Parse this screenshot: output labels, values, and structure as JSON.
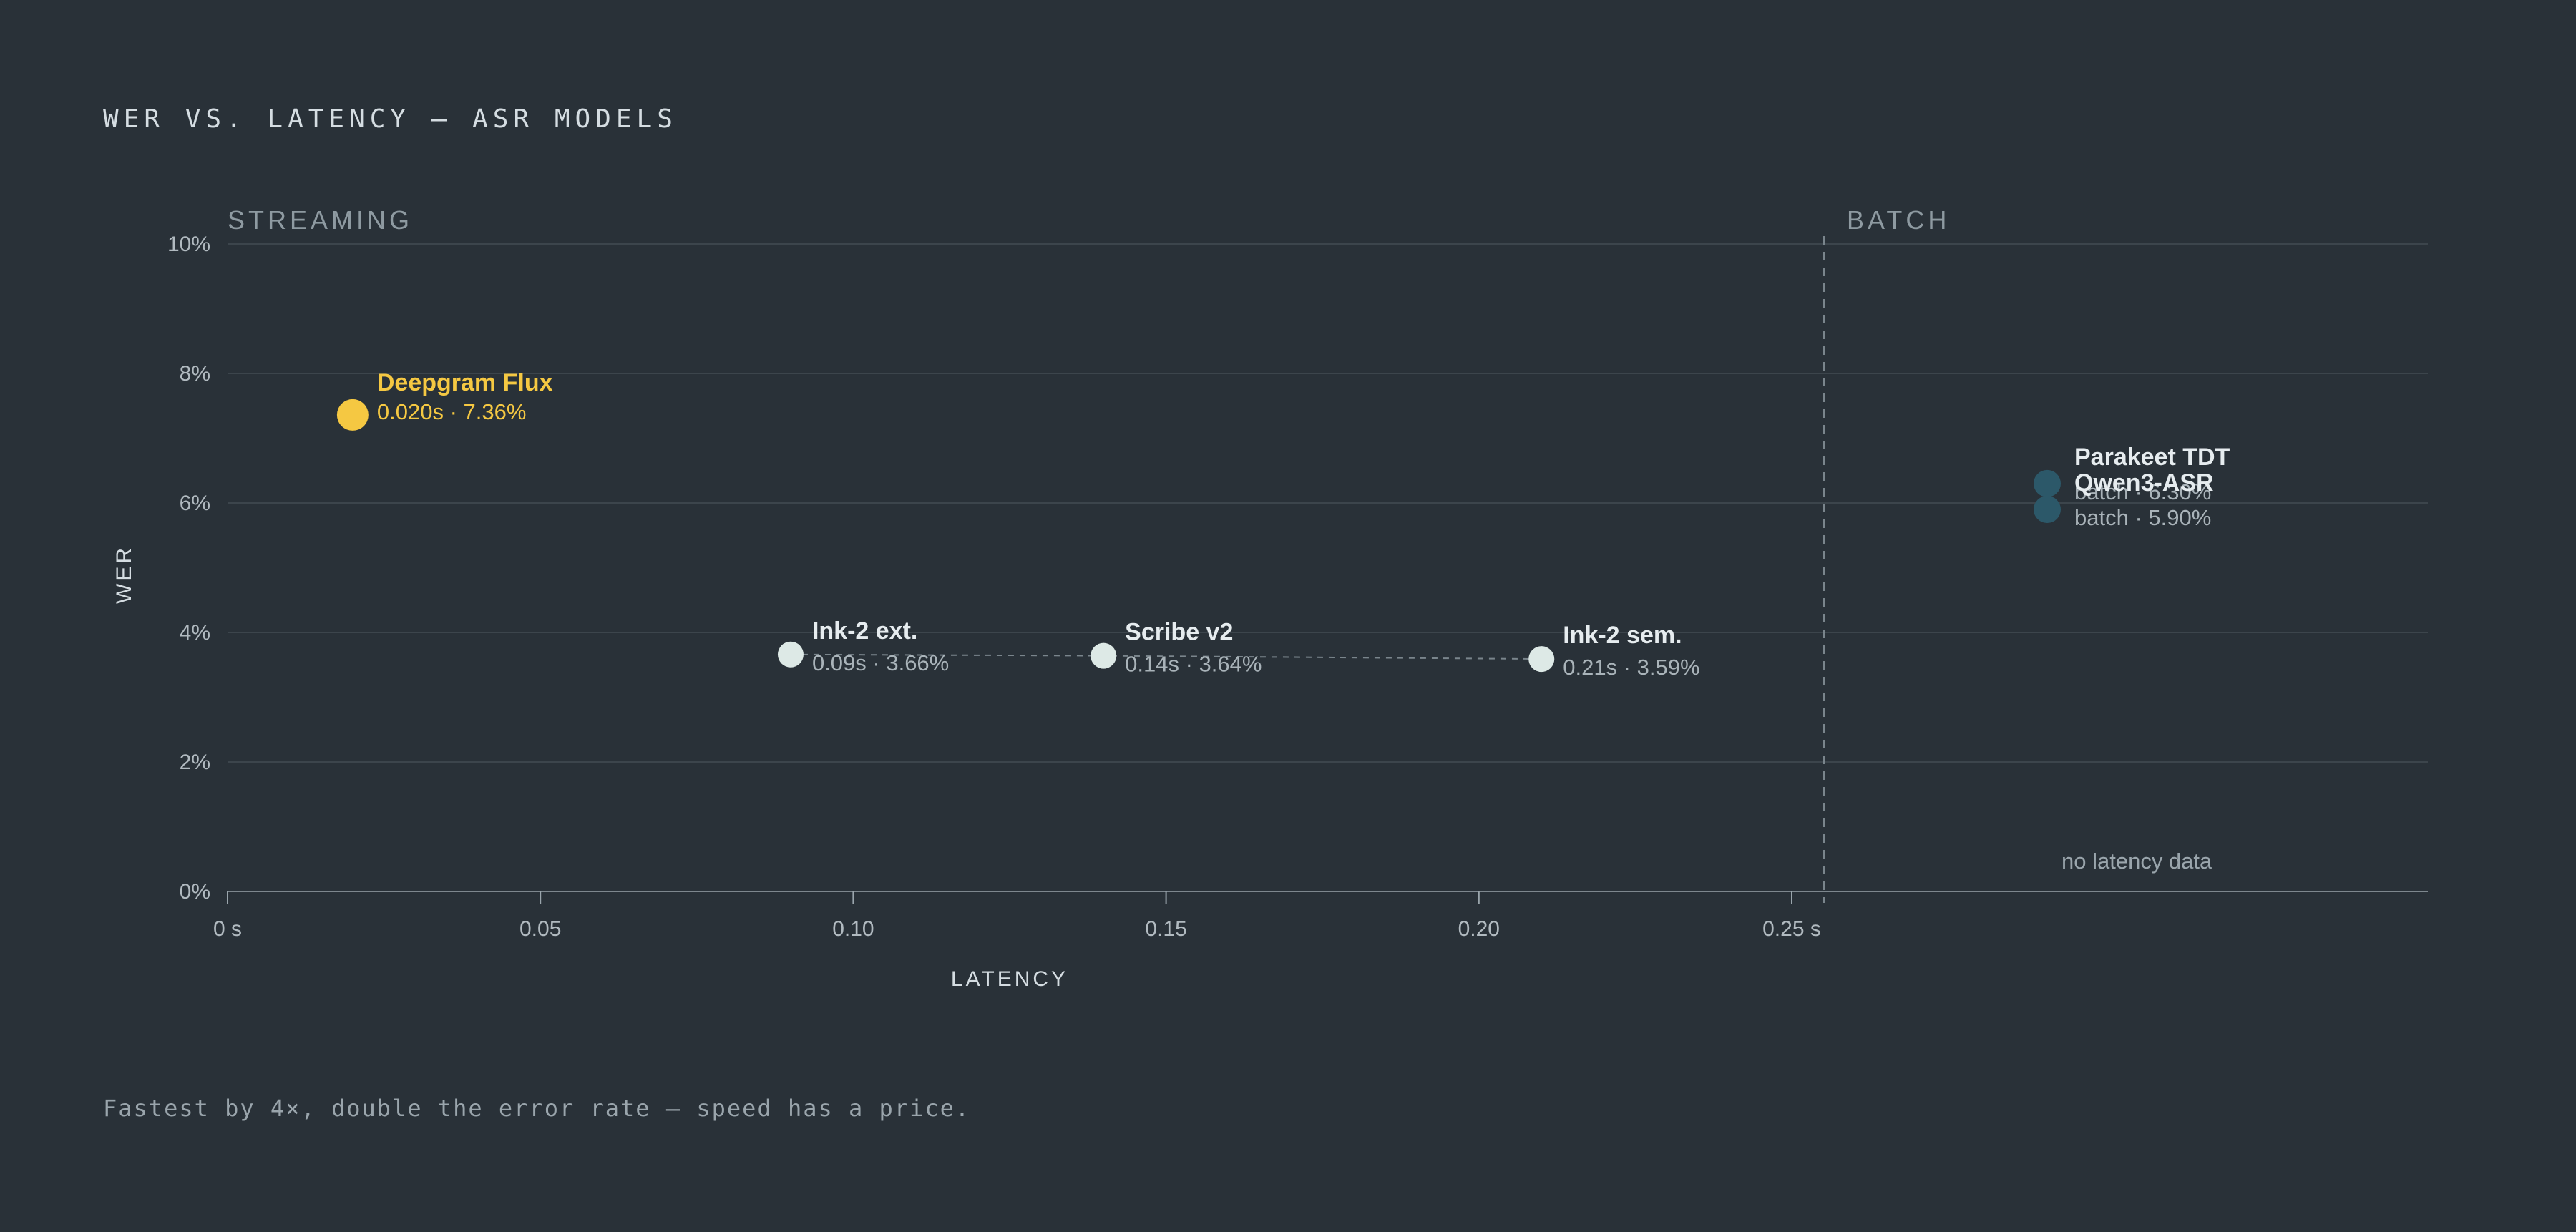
{
  "title": "WER VS. LATENCY — ASR MODELS",
  "caption": "Fastest by 4×, double the error rate — speed has a price.",
  "colors": {
    "background": "#293138",
    "highlight": "#f5c842",
    "streaming": "#dde9e6",
    "batch": "#2c5869"
  },
  "chart_data": {
    "type": "scatter",
    "xlabel": "LATENCY",
    "ylabel": "WER",
    "xlim": [
      0,
      0.25
    ],
    "ylim": [
      0,
      10
    ],
    "x_ticks": [
      "0 s",
      "0.05",
      "0.10",
      "0.15",
      "0.20",
      "0.25 s"
    ],
    "x_tick_values": [
      0,
      0.05,
      0.1,
      0.15,
      0.2,
      0.25
    ],
    "y_ticks": [
      "0%",
      "2%",
      "4%",
      "6%",
      "8%",
      "10%"
    ],
    "y_tick_values": [
      0,
      2,
      4,
      6,
      8,
      10
    ],
    "grid": true,
    "regions": {
      "streaming_label": "STREAMING",
      "batch_label": "BATCH"
    },
    "batch_note": "no latency data",
    "streaming_points": [
      {
        "name": "Deepgram Flux",
        "x": 0.02,
        "y": 7.36,
        "label": "0.020s · 7.36%",
        "highlight": true
      },
      {
        "name": "Ink-2 ext.",
        "x": 0.09,
        "y": 3.66,
        "label": "0.09s · 3.66%",
        "highlight": false
      },
      {
        "name": "Scribe v2",
        "x": 0.14,
        "y": 3.64,
        "label": "0.14s · 3.64%",
        "highlight": false
      },
      {
        "name": "Ink-2 sem.",
        "x": 0.21,
        "y": 3.59,
        "label": "0.21s · 3.59%",
        "highlight": false
      }
    ],
    "batch_points": [
      {
        "name": "Parakeet TDT",
        "y": 6.3,
        "label": "batch · 6.30%"
      },
      {
        "name": "Qwen3-ASR",
        "y": 5.9,
        "label": "batch · 5.90%"
      }
    ]
  }
}
